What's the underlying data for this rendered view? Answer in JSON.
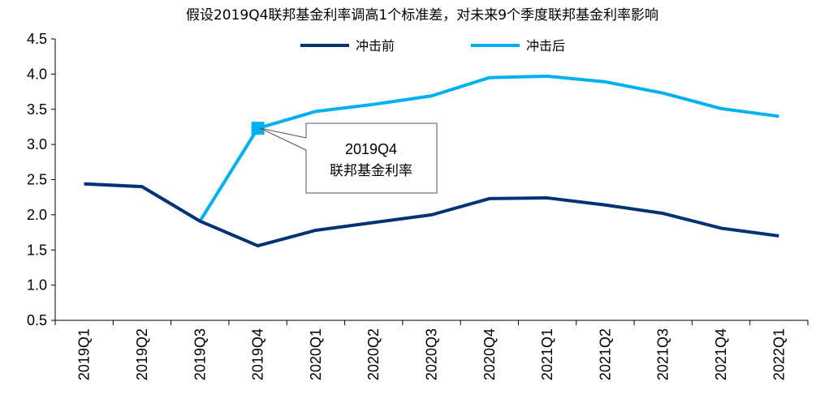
{
  "chart_data": {
    "type": "line",
    "title": "假设2019Q4联邦基金利率调高1个标准差，对未来9个季度联邦基金利率影响",
    "xlabel": "",
    "ylabel": "",
    "ylim": [
      0.5,
      4.5
    ],
    "yticks": [
      "0.5",
      "1.0",
      "1.5",
      "2.0",
      "2.5",
      "3.0",
      "3.5",
      "4.0",
      "4.5"
    ],
    "categories": [
      "2019Q1",
      "2019Q2",
      "2019Q3",
      "2019Q4",
      "2020Q1",
      "2020Q2",
      "2020Q3",
      "2020Q4",
      "2021Q1",
      "2021Q2",
      "2021Q3",
      "2021Q4",
      "2022Q1"
    ],
    "legend_position": "top-center",
    "grid": false,
    "series": [
      {
        "name": "冲击前",
        "color": "#003274",
        "values": [
          2.44,
          2.4,
          1.91,
          1.56,
          1.78,
          1.89,
          2.0,
          2.23,
          2.24,
          2.14,
          2.02,
          1.81,
          1.7
        ]
      },
      {
        "name": "冲击后",
        "color": "#00b0f0",
        "values": [
          2.44,
          2.4,
          1.91,
          3.23,
          3.47,
          3.57,
          3.69,
          3.95,
          3.97,
          3.89,
          3.73,
          3.51,
          3.4
        ]
      }
    ],
    "annotation": {
      "line1": "2019Q4",
      "line2": "联邦基金利率",
      "category": "2019Q4",
      "series": "冲击后"
    }
  }
}
